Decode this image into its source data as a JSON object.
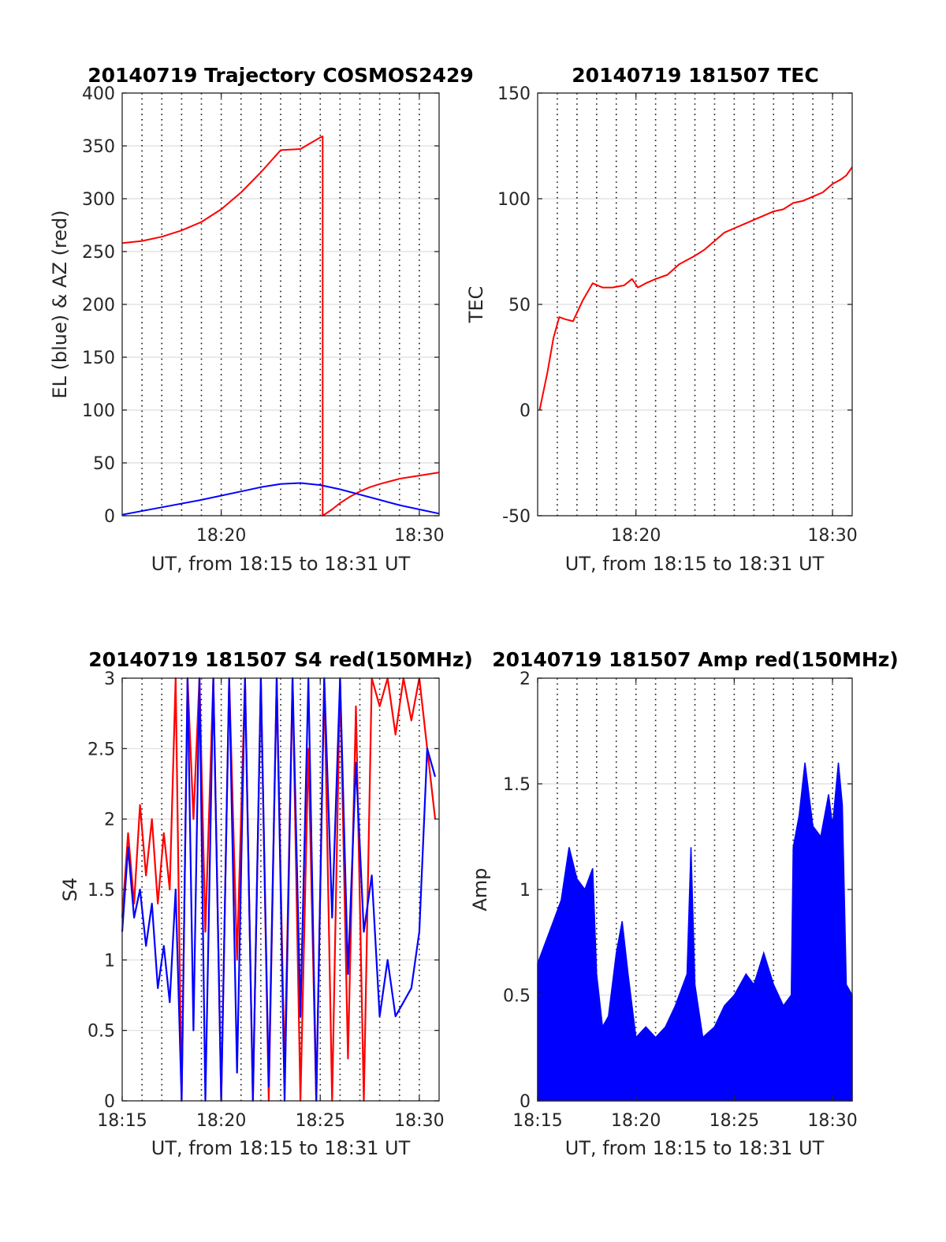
{
  "chart_data": [
    {
      "type": "line",
      "title": "20140719 Trajectory COSMOS2429",
      "xlabel": "UT, from 18:15 to 18:31 UT",
      "ylabel": "EL (blue) & AZ (red)",
      "xlim": [
        0,
        16
      ],
      "ylim": [
        0,
        400
      ],
      "yticks": [
        0,
        50,
        100,
        150,
        200,
        250,
        300,
        350,
        400
      ],
      "xtick_labels": [
        {
          "x": 5,
          "label": "18:20"
        },
        {
          "x": 15,
          "label": "18:30"
        }
      ],
      "dotted_vlines": [
        1,
        2,
        3,
        4,
        5,
        6,
        7,
        8,
        9,
        10,
        11,
        12,
        13,
        14,
        15
      ],
      "grid": "horizontal",
      "series": [
        {
          "name": "AZ",
          "color": "#ff0000",
          "x": [
            0,
            1,
            2,
            3,
            4,
            5,
            6,
            7,
            8,
            9,
            10,
            10.12,
            10.12,
            10.6,
            11,
            11.5,
            12,
            12.5,
            13,
            14,
            15,
            16
          ],
          "y": [
            258,
            260,
            264,
            270,
            278,
            290,
            306,
            325,
            346,
            347,
            358,
            359,
            0,
            6,
            12,
            18,
            23,
            27,
            30,
            35,
            38,
            41
          ]
        },
        {
          "name": "EL",
          "color": "#0000ff",
          "x": [
            0,
            2,
            4,
            6,
            7,
            8,
            9,
            10,
            11,
            12,
            13,
            14,
            15,
            16
          ],
          "y": [
            1,
            8,
            15,
            23,
            27,
            30,
            31,
            29,
            25,
            20,
            15,
            10,
            6,
            2
          ]
        }
      ]
    },
    {
      "type": "line",
      "title": "20140719 181507 TEC",
      "xlabel": "UT, from 18:15 to 18:31 UT",
      "ylabel": "TEC",
      "xlim": [
        0,
        16
      ],
      "ylim": [
        -50,
        150
      ],
      "yticks": [
        -50,
        0,
        50,
        100,
        150
      ],
      "xtick_labels": [
        {
          "x": 5,
          "label": "18:20"
        },
        {
          "x": 15,
          "label": "18:30"
        }
      ],
      "dotted_vlines": [
        1,
        2,
        3,
        4,
        5,
        6,
        7,
        8,
        9,
        10,
        11,
        12,
        13,
        14,
        15
      ],
      "grid": "horizontal",
      "series": [
        {
          "name": "TEC",
          "color": "#ff0000",
          "x": [
            0.1,
            0.5,
            0.8,
            1.1,
            1.4,
            1.8,
            2.3,
            2.8,
            3.3,
            3.8,
            4.4,
            4.8,
            5.1,
            5.5,
            6.0,
            6.6,
            7.2,
            7.6,
            8.0,
            8.5,
            9.0,
            9.5,
            10.0,
            10.5,
            11.0,
            11.5,
            12.0,
            12.5,
            13.0,
            13.5,
            14.0,
            14.5,
            15.0,
            15.4,
            15.7,
            16.0
          ],
          "y": [
            0,
            18,
            34,
            44,
            43,
            42,
            52,
            60,
            58,
            58,
            59,
            62,
            58,
            60,
            62,
            64,
            69,
            71,
            73,
            76,
            80,
            84,
            86,
            88,
            90,
            92,
            94,
            95,
            98,
            99,
            101,
            103,
            107,
            109,
            111,
            115
          ]
        }
      ]
    },
    {
      "type": "line",
      "title": "20140719 181507 S4 red(150MHz)",
      "xlabel": "UT, from 18:15 to 18:31 UT",
      "ylabel": "S4",
      "xlim": [
        0,
        16
      ],
      "ylim": [
        0,
        3
      ],
      "yticks": [
        0,
        0.5,
        1,
        1.5,
        2,
        2.5,
        3
      ],
      "xtick_labels": [
        {
          "x": 0,
          "label": "18:15"
        },
        {
          "x": 5,
          "label": "18:20"
        },
        {
          "x": 10,
          "label": "18:25"
        },
        {
          "x": 15,
          "label": "18:30"
        }
      ],
      "dotted_vlines": [
        1,
        2,
        3,
        4,
        5,
        6,
        7,
        8,
        9,
        10,
        11,
        12,
        13,
        14,
        15
      ],
      "grid": "horizontal",
      "series": [
        {
          "name": "red",
          "color": "#ff0000",
          "x": [
            0,
            0.3,
            0.6,
            0.9,
            1.2,
            1.5,
            1.8,
            2.1,
            2.4,
            2.7,
            3.0,
            3.3,
            3.6,
            3.9,
            4.2,
            4.6,
            5.0,
            5.4,
            5.8,
            6.2,
            6.6,
            7.0,
            7.4,
            7.8,
            8.2,
            8.6,
            9.0,
            9.4,
            9.8,
            10.2,
            10.6,
            11.0,
            11.4,
            11.8,
            12.2,
            12.6,
            13.0,
            13.4,
            13.8,
            14.2,
            14.6,
            15.0,
            15.4,
            15.8
          ],
          "y": [
            1.3,
            1.9,
            1.4,
            2.1,
            1.6,
            2.0,
            1.4,
            1.9,
            1.5,
            3.0,
            0.0,
            3.0,
            2.0,
            3.0,
            1.2,
            3.0,
            0.0,
            3.0,
            1.0,
            3.0,
            0.0,
            3.0,
            0.0,
            3.0,
            0.2,
            3.0,
            0.0,
            2.5,
            0.0,
            3.0,
            0.0,
            3.0,
            0.3,
            2.8,
            0.0,
            3.0,
            2.8,
            3.0,
            2.6,
            3.0,
            2.7,
            3.0,
            2.5,
            2.0
          ]
        },
        {
          "name": "blue",
          "color": "#0000ff",
          "x": [
            0,
            0.3,
            0.6,
            0.9,
            1.2,
            1.5,
            1.8,
            2.1,
            2.4,
            2.7,
            3.0,
            3.3,
            3.6,
            3.9,
            4.2,
            4.6,
            5.0,
            5.4,
            5.8,
            6.2,
            6.6,
            7.0,
            7.4,
            7.8,
            8.2,
            8.6,
            9.0,
            9.4,
            9.8,
            10.2,
            10.6,
            11.0,
            11.4,
            11.8,
            12.2,
            12.6,
            13.0,
            13.4,
            13.8,
            14.2,
            14.6,
            15.0,
            15.4,
            15.8
          ],
          "y": [
            1.2,
            1.8,
            1.3,
            1.5,
            1.1,
            1.4,
            0.8,
            1.1,
            0.7,
            1.5,
            0.0,
            3.0,
            0.5,
            3.0,
            0.0,
            3.0,
            0.0,
            3.0,
            0.2,
            3.0,
            0.0,
            3.0,
            0.1,
            3.0,
            0.0,
            3.0,
            0.6,
            3.0,
            0.0,
            3.0,
            1.3,
            3.0,
            0.9,
            2.4,
            1.2,
            1.6,
            0.6,
            1.0,
            0.6,
            0.7,
            0.8,
            1.2,
            2.5,
            2.3
          ]
        }
      ]
    },
    {
      "type": "line",
      "title": "20140719 181507 Amp red(150MHz)",
      "xlabel": "UT, from 18:15 to 18:31 UT",
      "ylabel": "Amp",
      "xlim": [
        0,
        16
      ],
      "ylim": [
        0,
        2
      ],
      "yticks": [
        0,
        0.5,
        1,
        1.5,
        2
      ],
      "xtick_labels": [
        {
          "x": 0,
          "label": "18:15"
        },
        {
          "x": 5,
          "label": "18:20"
        },
        {
          "x": 10,
          "label": "18:25"
        },
        {
          "x": 15,
          "label": "18:30"
        }
      ],
      "dotted_vlines": [
        1,
        2,
        3,
        4,
        5,
        6,
        7,
        8,
        9,
        10,
        11,
        12,
        13,
        14,
        15
      ],
      "grid": "horizontal",
      "series": [
        {
          "name": "blue envelope",
          "color": "#0000ff",
          "x": [
            0,
            0.4,
            0.8,
            1.2,
            1.6,
            2.0,
            2.4,
            2.8,
            3.0,
            3.3,
            3.6,
            4.0,
            4.3,
            4.6,
            5.0,
            5.5,
            6.0,
            6.5,
            7.0,
            7.6,
            7.8,
            8.0,
            8.4,
            9.0,
            9.5,
            10.0,
            10.6,
            11.0,
            11.5,
            12.0,
            12.5,
            12.9,
            13.0,
            13.3,
            13.6,
            14.0,
            14.4,
            14.8,
            15.0,
            15.3,
            15.5,
            15.7,
            16.0
          ],
          "y": [
            0.65,
            0.75,
            0.85,
            0.95,
            1.2,
            1.05,
            1.0,
            1.1,
            0.6,
            0.35,
            0.4,
            0.7,
            0.85,
            0.6,
            0.3,
            0.35,
            0.3,
            0.35,
            0.45,
            0.6,
            1.2,
            0.55,
            0.3,
            0.35,
            0.45,
            0.5,
            0.6,
            0.55,
            0.7,
            0.55,
            0.45,
            0.5,
            1.2,
            1.35,
            1.6,
            1.3,
            1.25,
            1.45,
            1.3,
            1.6,
            1.4,
            0.55,
            0.5
          ]
        }
      ]
    }
  ]
}
